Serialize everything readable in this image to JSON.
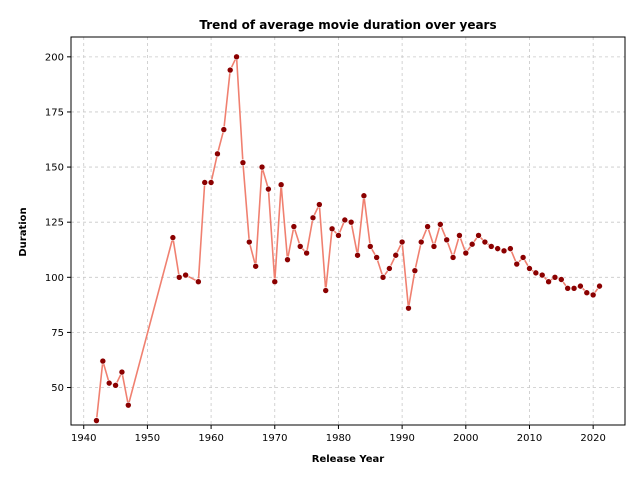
{
  "chart_data": {
    "type": "line",
    "title": "Trend of average movie duration over years",
    "xlabel": "Release Year",
    "ylabel": "Duration",
    "xlim": [
      1938,
      2025
    ],
    "ylim": [
      33,
      209
    ],
    "xticks": [
      1940,
      1950,
      1960,
      1970,
      1980,
      1990,
      2000,
      2010,
      2020
    ],
    "yticks": [
      50,
      75,
      100,
      125,
      150,
      175,
      200
    ],
    "grid": true,
    "line_color": "#f08070",
    "marker_color": "#8b0000",
    "series": [
      {
        "x": [
          1942,
          1943,
          1944,
          1945,
          1946,
          1947,
          1954,
          1955,
          1956,
          1958,
          1959,
          1960,
          1961,
          1962,
          1963,
          1964,
          1965,
          1966,
          1967,
          1968,
          1969,
          1970,
          1971,
          1972,
          1973,
          1974,
          1975,
          1976,
          1977,
          1978,
          1979,
          1980,
          1981,
          1982,
          1983,
          1984,
          1985,
          1986,
          1987,
          1988,
          1989,
          1990,
          1991,
          1992,
          1993,
          1994,
          1995,
          1996,
          1997,
          1998,
          1999,
          2000,
          2001,
          2002,
          2003,
          2004,
          2005,
          2006,
          2007,
          2008,
          2009,
          2010,
          2011,
          2012,
          2013,
          2014,
          2015,
          2016,
          2017,
          2018,
          2019,
          2020,
          2021
        ],
        "values": [
          35,
          62,
          52,
          51,
          57,
          42,
          118,
          100,
          101,
          98,
          143,
          143,
          156,
          167,
          194,
          200,
          152,
          116,
          105,
          150,
          140,
          98,
          142,
          108,
          123,
          114,
          111,
          127,
          133,
          94,
          122,
          119,
          126,
          125,
          110,
          137,
          114,
          109,
          100,
          104,
          110,
          116,
          86,
          103,
          116,
          123,
          114,
          124,
          117,
          109,
          119,
          111,
          115,
          119,
          116,
          114,
          113,
          112,
          113,
          106,
          109,
          104,
          102,
          101,
          98,
          100,
          99,
          95,
          95,
          96,
          93,
          92,
          96
        ]
      }
    ]
  }
}
